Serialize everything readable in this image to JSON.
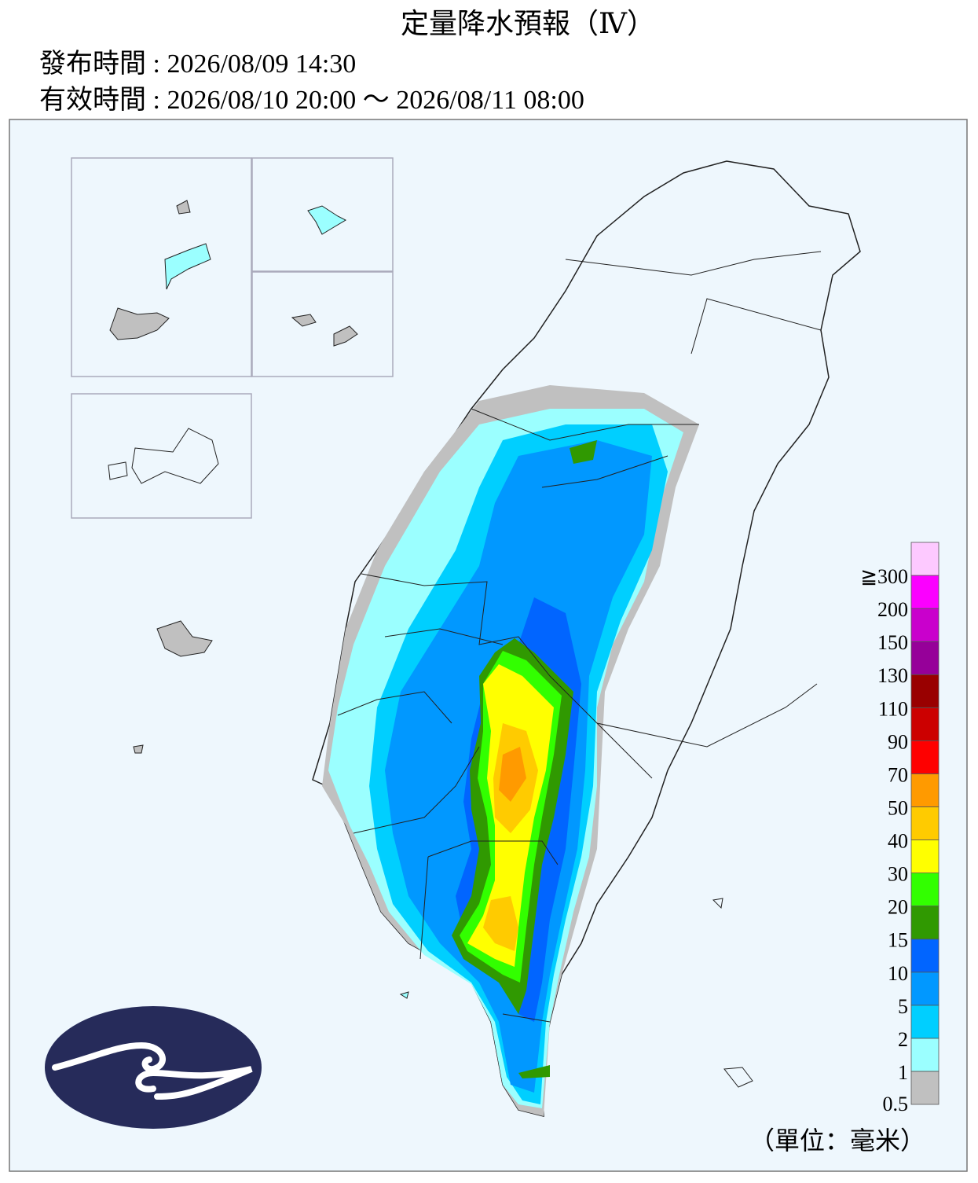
{
  "header": {
    "title": "定量降水預報（Ⅳ）",
    "issued": "發布時間 : 2026/08/09 14:30",
    "valid": "有效時間 : 2026/08/10 20:00 ～ 2026/08/11 08:00"
  },
  "legend": {
    "levels": [
      {
        "label": "0.5",
        "color": "#c0c0c0"
      },
      {
        "label": "1",
        "color": "#9bffff"
      },
      {
        "label": "2",
        "color": "#00cfff"
      },
      {
        "label": "5",
        "color": "#0198ff"
      },
      {
        "label": "10",
        "color": "#0165ff"
      },
      {
        "label": "15",
        "color": "#309901"
      },
      {
        "label": "20",
        "color": "#32ff00"
      },
      {
        "label": "30",
        "color": "#ffff00"
      },
      {
        "label": "40",
        "color": "#ffcb00"
      },
      {
        "label": "50",
        "color": "#ff9a00"
      },
      {
        "label": "70",
        "color": "#fe0000"
      },
      {
        "label": "90",
        "color": "#cc0000"
      },
      {
        "label": "110",
        "color": "#990000"
      },
      {
        "label": "130",
        "color": "#960099"
      },
      {
        "label": "150",
        "color": "#c900cc"
      },
      {
        "label": "200",
        "color": "#fb00ff"
      },
      {
        "label": "≧300",
        "color": "#fdc9ff"
      }
    ],
    "unit": "（單位：毫米）"
  }
}
